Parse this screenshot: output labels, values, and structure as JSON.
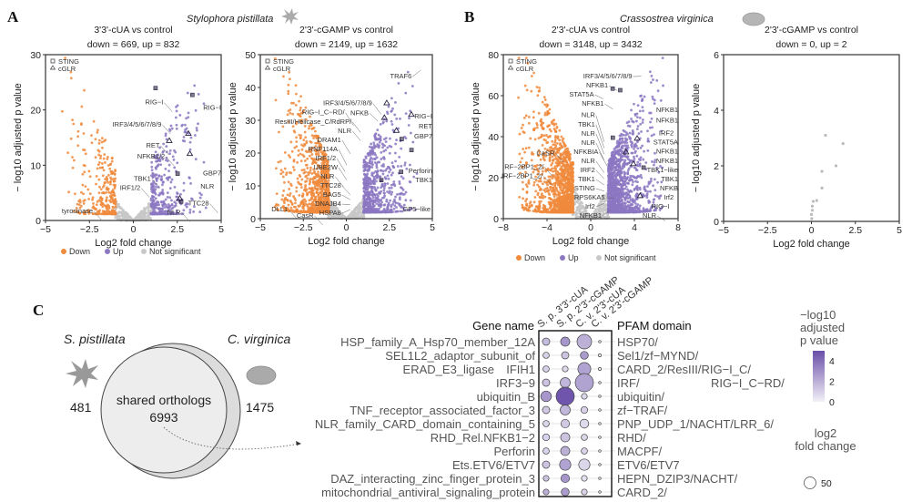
{
  "panel_a": {
    "letter": "A",
    "species": "Stylophora pistillata"
  },
  "panel_b": {
    "letter": "B",
    "species": "Crassostrea virginica"
  },
  "panel_c": {
    "letter": "C"
  },
  "legend": {
    "down": "Down",
    "up": "Up",
    "ns": "Not significant",
    "sting": "STING",
    "cglr": "cGLR"
  },
  "colors": {
    "down": "#f08a3c",
    "up": "#8b77c2",
    "ns": "#c8c8c8",
    "marker": "#2a2240",
    "dot_high": "#6a4fa8",
    "dot_low": "#f2f0f7"
  },
  "chart_data": [
    {
      "type": "scatter",
      "id": "sp-cua",
      "title": "3'3'-cUA vs control",
      "subtitle": "down = 669, up = 832",
      "xlabel": "Log2 fold change",
      "ylabel": "− log10 adjusted p value",
      "xlim": [
        -5,
        5
      ],
      "ylim": [
        0,
        30
      ],
      "xticks": [
        "−5",
        "−2.5",
        "0",
        "2.5",
        "5"
      ],
      "xtick_values": [
        -5,
        -2.5,
        0,
        2.5,
        5
      ],
      "yticks": [
        "0",
        "10",
        "20",
        "30"
      ],
      "ytick_values": [
        0,
        10,
        20,
        30
      ],
      "down": 669,
      "up": 832,
      "legend_placement": "top-left",
      "annotations": [
        {
          "text": "RIG−I",
          "x": 1.7,
          "y": 21
        },
        {
          "text": "IRF3/4/5/6/7/8/9",
          "x": 1.6,
          "y": 17
        },
        {
          "text": "RIG−I",
          "x": 5.0,
          "y": 20
        },
        {
          "text": "RET",
          "x": 1.5,
          "y": 13.2
        },
        {
          "text": "NFKB1/2",
          "x": 1.8,
          "y": 11.2
        },
        {
          "text": "GBP7",
          "x": 5.0,
          "y": 8.2
        },
        {
          "text": "NLR",
          "x": 4.6,
          "y": 5.8
        },
        {
          "text": "TBK1",
          "x": 1.0,
          "y": 7.2
        },
        {
          "text": "IRF1/2",
          "x": 0.4,
          "y": 5.5
        },
        {
          "text": "TTC28",
          "x": 4.3,
          "y": 2.7
        },
        {
          "text": "NLR",
          "x": 2.7,
          "y": 1.1
        },
        {
          "text": "tyrosinase",
          "x": -2.3,
          "y": 1.3
        }
      ]
    },
    {
      "type": "scatter",
      "id": "sp-cgamp",
      "title": "2'3'-cGAMP vs control",
      "subtitle": "down = 2149, up = 1632",
      "xlabel": "Log2 fold change",
      "ylabel": "− log10 adjusted p value",
      "xlim": [
        -5,
        5
      ],
      "ylim": [
        0,
        50
      ],
      "xticks": [
        "−5",
        "−2.5",
        "0",
        "2.5",
        "5"
      ],
      "xtick_values": [
        -5,
        -2.5,
        0,
        2.5,
        5
      ],
      "yticks": [
        "0",
        "10",
        "20",
        "30",
        "40",
        "50"
      ],
      "ytick_values": [
        0,
        10,
        20,
        30,
        40,
        50
      ],
      "down": 2149,
      "up": 1632,
      "legend_placement": "top-left",
      "annotations": [
        {
          "text": "TRAF6",
          "x": 3.8,
          "y": 47.5
        },
        {
          "text": "IRF3/4/5/6/7/8/9",
          "x": 1.5,
          "y": 34
        },
        {
          "text": "NFKB",
          "x": 1.3,
          "y": 32
        },
        {
          "text": "RIG−I_C−RD/",
          "x": -0.1,
          "y": 30.5
        },
        {
          "text": "ResIII/Helicase_C/RdRP/",
          "x": 0.3,
          "y": 28.5
        },
        {
          "text": "NLR",
          "x": 0.3,
          "y": 26
        },
        {
          "text": "DRAM1",
          "x": -0.3,
          "y": 22
        },
        {
          "text": "RNF114A",
          "x": -0.5,
          "y": 18.5
        },
        {
          "text": "IRF1/2",
          "x": -0.6,
          "y": 16.5
        },
        {
          "text": "UBE2W",
          "x": -0.5,
          "y": 14
        },
        {
          "text": "NLR",
          "x": -0.7,
          "y": 12
        },
        {
          "text": "TTC28",
          "x": -0.3,
          "y": 9.5
        },
        {
          "text": "BAG5",
          "x": -0.3,
          "y": 8
        },
        {
          "text": "DNAJB4",
          "x": -0.3,
          "y": 6.5
        },
        {
          "text": "HSPA8",
          "x": -0.3,
          "y": 5
        },
        {
          "text": "DLL1",
          "x": -3.4,
          "y": 2.2
        },
        {
          "text": "CasR",
          "x": -1.9,
          "y": 0.3
        },
        {
          "text": "RIG−I",
          "x": 5.0,
          "y": 30.5
        },
        {
          "text": "RET",
          "x": 5.0,
          "y": 27.5
        },
        {
          "text": "GBP7",
          "x": 5.0,
          "y": 24.5
        },
        {
          "text": "Perforin",
          "x": 5.0,
          "y": 13.5
        },
        {
          "text": "TBK1",
          "x": 5.0,
          "y": 11.5
        },
        {
          "text": "GP5−like",
          "x": 4.9,
          "y": 2.2
        }
      ]
    },
    {
      "type": "scatter",
      "id": "cv-cua",
      "title": "2'3'-cUA vs control",
      "subtitle": "down = 3148, up = 3432",
      "xlabel": "Log2 fold change",
      "ylabel": "− log10 adjusted p value",
      "xlim": [
        -8,
        8
      ],
      "ylim": [
        0,
        80
      ],
      "xticks": [
        "−8",
        "−4",
        "0",
        "4",
        "8"
      ],
      "xtick_values": [
        -8,
        -4,
        0,
        4,
        8
      ],
      "yticks": [
        "0",
        "20",
        "40",
        "60",
        "80"
      ],
      "ytick_values": [
        0,
        20,
        40,
        60,
        80
      ],
      "down": 3148,
      "up": 3432,
      "legend_placement": "top-left",
      "annotations": [
        {
          "text": "IRF3/4/5/6/7/8/9",
          "x": 3.8,
          "y": 73
        },
        {
          "text": "NFKB1",
          "x": 1.6,
          "y": 66
        },
        {
          "text": "STAT5A",
          "x": 0.3,
          "y": 62
        },
        {
          "text": "NFKB1",
          "x": 1.2,
          "y": 57
        },
        {
          "text": "NFKB1",
          "x": 8,
          "y": 52
        },
        {
          "text": "NFKB1",
          "x": 8,
          "y": 47
        },
        {
          "text": "NLR",
          "x": 0.4,
          "y": 41
        },
        {
          "text": "TBK1",
          "x": 0.4,
          "y": 38
        },
        {
          "text": "NLR",
          "x": 0.4,
          "y": 35
        },
        {
          "text": "NLR",
          "x": 0.4,
          "y": 32
        },
        {
          "text": "NFKBIA",
          "x": 0.7,
          "y": 29
        },
        {
          "text": "NLR",
          "x": 0.4,
          "y": 26
        },
        {
          "text": "IRF2",
          "x": 0.4,
          "y": 23
        },
        {
          "text": "TBK1",
          "x": 0.4,
          "y": 20
        },
        {
          "text": "STING",
          "x": 0.4,
          "y": 17
        },
        {
          "text": "RPS6KA5",
          "x": 1.3,
          "y": 13.5
        },
        {
          "text": "Irf2",
          "x": 0.4,
          "y": 11
        },
        {
          "text": "NFKB1",
          "x": 1.0,
          "y": 8
        },
        {
          "text": "CaSR",
          "x": -3.3,
          "y": 31
        },
        {
          "text": "IRF−2BP1_2/",
          "x": -4.3,
          "y": 24
        },
        {
          "text": "IRF−2BP1_2/",
          "x": -4.4,
          "y": 20
        },
        {
          "text": "IRF2",
          "x": 7.6,
          "y": 38
        },
        {
          "text": "STAT5A",
          "x": 8,
          "y": 33
        },
        {
          "text": "NFKB1",
          "x": 8,
          "y": 29
        },
        {
          "text": "NFKB1",
          "x": 8,
          "y": 25
        },
        {
          "text": "TBK1−like",
          "x": 8,
          "y": 21
        },
        {
          "text": "TBK1",
          "x": 8,
          "y": 18
        },
        {
          "text": "NFKB",
          "x": 8,
          "y": 15
        },
        {
          "text": "Irf2",
          "x": 7.6,
          "y": 9.5
        },
        {
          "text": "RIG−I",
          "x": 7.2,
          "y": 6.5
        },
        {
          "text": "NLR",
          "x": 6.0,
          "y": 2.5
        }
      ]
    },
    {
      "type": "scatter",
      "id": "cv-cgamp",
      "title": "2'3'-cGAMP vs control",
      "subtitle": "down = 0, up = 2",
      "xlabel": "Log2 fold change",
      "ylabel": "− log10 adjusted p value",
      "xlim": [
        -5,
        5
      ],
      "ylim": [
        0,
        6
      ],
      "xticks": [
        "−5",
        "−2.5",
        "0",
        "2.5",
        "5"
      ],
      "xtick_values": [
        -5,
        -2.5,
        0,
        2.5,
        5
      ],
      "yticks": [
        "0",
        "2",
        "4",
        "6"
      ],
      "ytick_values": [
        0,
        2,
        4,
        6
      ],
      "down": 0,
      "up": 2,
      "points": [
        [
          0.8,
          3.1
        ],
        [
          1.8,
          2.8
        ],
        [
          1.4,
          2.0
        ],
        [
          0.6,
          1.8
        ],
        [
          0.6,
          1.2
        ],
        [
          0.1,
          0.72
        ],
        [
          0.3,
          0.75
        ],
        [
          0.05,
          0.55
        ],
        [
          0.05,
          0.4
        ],
        [
          0.0,
          0.25
        ],
        [
          0.02,
          0.1
        ]
      ],
      "annotations": []
    },
    {
      "type": "venn",
      "sets": [
        "S. pistillata",
        "C. virginica"
      ],
      "only_left": "481",
      "only_right": "1475",
      "shared_label": "shared orthologs",
      "shared": "6993"
    },
    {
      "type": "dotplot",
      "gene_header": "Gene name",
      "pfam_header": "PFAM domain",
      "columns": [
        "S. p. 3'3'-cUA",
        "S. p. 2'3'-cGAMP",
        "C. v. 2'3'-cUA",
        "C. v. 2'3'-cGAMP"
      ],
      "rows": [
        {
          "gene": "HSP_family_A_Hsp70_member_12A",
          "pfam": "HSP70/",
          "size": [
            19,
            30,
            76,
            2
          ],
          "p": [
            1.6,
            2.8,
            2.0,
            0
          ]
        },
        {
          "gene": "SEL1L2_adaptor_subunit_of",
          "pfam": "Sel1/zf−MYND/",
          "size": [
            14,
            19,
            22,
            3
          ],
          "p": [
            1.0,
            1.4,
            2.6,
            0
          ]
        },
        {
          "gene": "IFIH1",
          "gene_wrap": "ERAD_E3_ligase",
          "pfam": "CARD_2/ResIII/RIG−I_C/",
          "size": [
            14,
            12,
            60,
            3
          ],
          "p": [
            1.0,
            0.7,
            2.4,
            0
          ]
        },
        {
          "gene": "IRF3−9",
          "pfam": "IRF/",
          "pfam_wrap": "RIG−I_C−RD/",
          "size": [
            19,
            36,
            118,
            2
          ],
          "p": [
            1.4,
            1.8,
            2.4,
            0
          ]
        },
        {
          "gene": "ubiquitin_B",
          "pfam": "ubiquitin/",
          "size": [
            40,
            118,
            12,
            2
          ],
          "p": [
            2.8,
            4.8,
            0.8,
            0
          ]
        },
        {
          "gene": "TNF_receptor_associated_factor_3",
          "pfam": "zf−TRAF/",
          "size": [
            19,
            36,
            16,
            2
          ],
          "p": [
            1.2,
            1.8,
            1.0,
            0
          ]
        },
        {
          "gene": "NLR_family_CARD_domain_containing_5",
          "pfam": "PNP_UDP_1/NACHT/LRR_6/",
          "size": [
            14,
            26,
            28,
            2
          ],
          "p": [
            0.8,
            1.2,
            0.7,
            0
          ]
        },
        {
          "gene": "RHD_Rel.NFKB1−2",
          "pfam": "RHD/",
          "size": [
            17,
            30,
            14,
            2
          ],
          "p": [
            0.9,
            1.4,
            0.8,
            0
          ]
        },
        {
          "gene": "Perforin",
          "pfam": "MACPF/",
          "size": [
            14,
            30,
            14,
            2
          ],
          "p": [
            0.9,
            2.0,
            0.9,
            0
          ]
        },
        {
          "gene": "Ets.ETV6/ETV7",
          "pfam": "ETV6/ETV7",
          "size": [
            19,
            45,
            45,
            2
          ],
          "p": [
            1.4,
            2.4,
            0.8,
            0
          ]
        },
        {
          "gene": "DAZ_interacting_zinc_finger_protein_3",
          "pfam": "HEPN_DZIP3/NACHT/",
          "size": [
            12,
            26,
            12,
            2
          ],
          "p": [
            1.4,
            2.8,
            0.5,
            0
          ]
        },
        {
          "gene": "mitochondrial_antiviral_signaling_protein",
          "pfam": "CARD_2/",
          "size": [
            12,
            22,
            12,
            2
          ],
          "p": [
            2.0,
            2.6,
            0.9,
            0
          ]
        }
      ],
      "color_legend": {
        "title": [
          "−log10",
          "adjusted",
          "p value"
        ],
        "ticks": [
          "0",
          "2",
          "4"
        ],
        "tick_values": [
          0,
          2,
          4
        ],
        "range": [
          0,
          5
        ]
      },
      "size_legend": {
        "title": [
          "log2",
          "fold change"
        ],
        "labels": [
          "50"
        ],
        "values": [
          50
        ]
      }
    }
  ]
}
